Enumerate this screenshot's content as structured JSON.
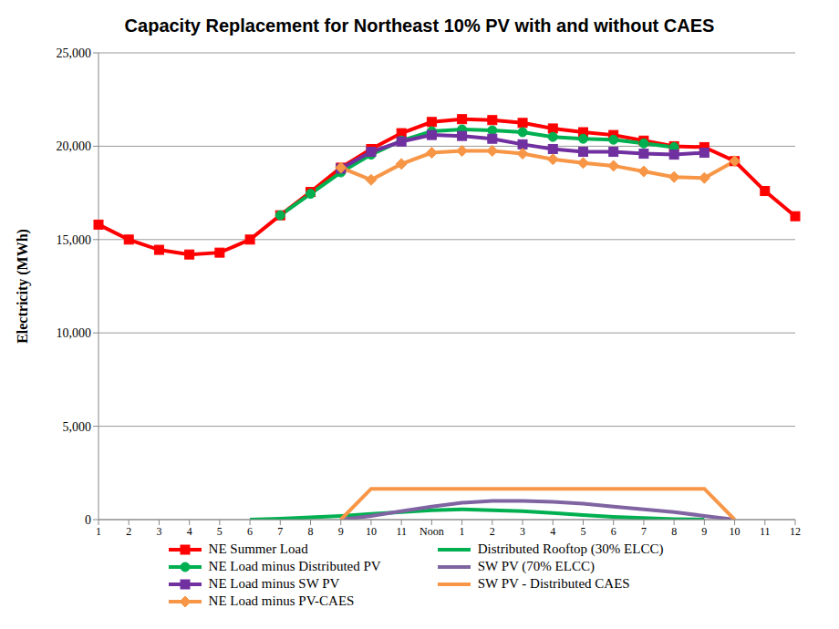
{
  "chart_data": {
    "type": "line",
    "title": "Capacity Replacement for Northeast 10% PV with and without CAES",
    "ylabel": "Electricity (MWh)",
    "categories": [
      "1",
      "2",
      "3",
      "4",
      "5",
      "6",
      "7",
      "8",
      "9",
      "10",
      "11",
      "Noon",
      "1",
      "2",
      "3",
      "4",
      "5",
      "6",
      "7",
      "8",
      "9",
      "10",
      "11",
      "12"
    ],
    "ylim": [
      0,
      25000
    ],
    "yticks": [
      {
        "value": 0,
        "label": "0"
      },
      {
        "value": 5000,
        "label": "5,000"
      },
      {
        "value": 10000,
        "label": "10,000"
      },
      {
        "value": 15000,
        "label": "15,000"
      },
      {
        "value": 20000,
        "label": "20,000"
      },
      {
        "value": 25000,
        "label": "25,000"
      }
    ],
    "grid": true,
    "legend": "bottom",
    "series": [
      {
        "name": "NE Summer Load",
        "color": "#ff0000",
        "marker": "square",
        "values": [
          15800,
          15000,
          14450,
          14200,
          14300,
          15000,
          16300,
          17550,
          18850,
          19850,
          20700,
          21300,
          21450,
          21400,
          21250,
          20950,
          20750,
          20600,
          20300,
          20000,
          19950,
          19200,
          17600,
          16250
        ]
      },
      {
        "name": "NE Load minus Distributed PV",
        "color": "#00b050",
        "marker": "circle",
        "values": [
          null,
          null,
          null,
          null,
          null,
          null,
          16300,
          17450,
          18600,
          19550,
          20300,
          20800,
          20900,
          20850,
          20750,
          20500,
          20400,
          20350,
          20150,
          19950,
          null,
          null,
          null,
          null
        ]
      },
      {
        "name": "NE Load minus SW PV",
        "color": "#7030a0",
        "marker": "square",
        "values": [
          null,
          null,
          null,
          null,
          null,
          null,
          null,
          null,
          18800,
          19700,
          20250,
          20600,
          20550,
          20400,
          20100,
          19850,
          19700,
          19700,
          19600,
          19550,
          19650,
          null,
          null,
          null
        ]
      },
      {
        "name": "NE Load minus PV-CAES",
        "color": "#f79646",
        "marker": "diamond",
        "values": [
          null,
          null,
          null,
          null,
          null,
          null,
          null,
          null,
          18850,
          18200,
          19050,
          19650,
          19750,
          19750,
          19600,
          19300,
          19100,
          18950,
          18650,
          18350,
          18300,
          19200,
          null,
          null
        ]
      },
      {
        "name": "Distributed Rooftop (30% ELCC)",
        "color": "#00b050",
        "marker": "none",
        "values": [
          null,
          null,
          null,
          null,
          null,
          0,
          50,
          120,
          200,
          300,
          400,
          500,
          550,
          500,
          450,
          350,
          250,
          150,
          80,
          30,
          0,
          null,
          null,
          null
        ]
      },
      {
        "name": "SW PV (70% ELCC)",
        "color": "#8064a2",
        "marker": "none",
        "values": [
          null,
          null,
          null,
          null,
          null,
          null,
          null,
          null,
          0,
          200,
          450,
          700,
          900,
          1000,
          1000,
          950,
          850,
          700,
          550,
          400,
          200,
          0,
          null,
          null
        ]
      },
      {
        "name": "SW PV - Distributed CAES",
        "color": "#f79646",
        "marker": "none",
        "values": [
          null,
          null,
          null,
          null,
          null,
          null,
          null,
          null,
          0,
          1650,
          1650,
          1650,
          1650,
          1650,
          1650,
          1650,
          1650,
          1650,
          1650,
          1650,
          1650,
          0,
          null,
          null
        ]
      }
    ]
  }
}
